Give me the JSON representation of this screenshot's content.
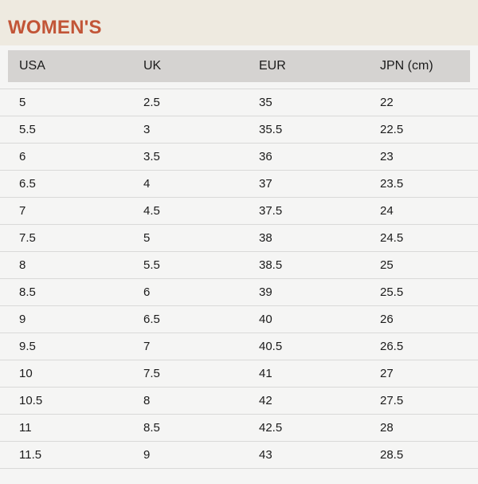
{
  "page": {
    "title": "WOMEN'S"
  },
  "theme": {
    "accent": "#c25537",
    "band_bg": "#eeeae0",
    "page_bg": "#f5f5f4",
    "header_bg": "#d5d3d1",
    "border_color": "#d9d9d8",
    "text_color": "#1b1b1b"
  },
  "table": {
    "columns": [
      "USA",
      "UK",
      "EUR",
      "JPN (cm)"
    ],
    "rows": [
      [
        "5",
        "2.5",
        "35",
        "22"
      ],
      [
        "5.5",
        "3",
        "35.5",
        "22.5"
      ],
      [
        "6",
        "3.5",
        "36",
        "23"
      ],
      [
        "6.5",
        "4",
        "37",
        "23.5"
      ],
      [
        "7",
        "4.5",
        "37.5",
        "24"
      ],
      [
        "7.5",
        "5",
        "38",
        "24.5"
      ],
      [
        "8",
        "5.5",
        "38.5",
        "25"
      ],
      [
        "8.5",
        "6",
        "39",
        "25.5"
      ],
      [
        "9",
        "6.5",
        "40",
        "26"
      ],
      [
        "9.5",
        "7",
        "40.5",
        "26.5"
      ],
      [
        "10",
        "7.5",
        "41",
        "27"
      ],
      [
        "10.5",
        "8",
        "42",
        "27.5"
      ],
      [
        "11",
        "8.5",
        "42.5",
        "28"
      ],
      [
        "11.5",
        "9",
        "43",
        "28.5"
      ]
    ]
  }
}
